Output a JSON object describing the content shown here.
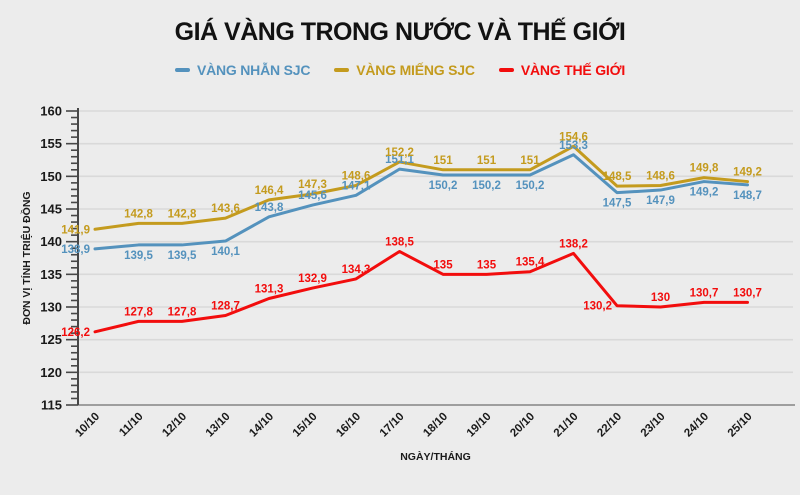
{
  "title": "GIÁ VÀNG TRONG NƯỚC VÀ THẾ GIỚI",
  "colors": {
    "background": "#ececec",
    "grid": "#d9d9d9",
    "y_axis": "#474747",
    "x_axis": "#9e9e9e",
    "tick_text": "#1a1a1a",
    "title_text": "#121212"
  },
  "chart_data": {
    "type": "line",
    "x": [
      "10/10",
      "11/10",
      "12/10",
      "13/10",
      "14/10",
      "15/10",
      "16/10",
      "17/10",
      "18/10",
      "19/10",
      "20/10",
      "21/10",
      "22/10",
      "23/10",
      "24/10",
      "25/10"
    ],
    "xlabel": "NGÀY/THÁNG",
    "ylabel": "ĐƠN VỊ TÍNH TRIỆU ĐỒNG",
    "ylim": [
      115,
      160
    ],
    "ytick_step": 5,
    "yticks": [
      115,
      120,
      125,
      130,
      135,
      140,
      145,
      150,
      155,
      160
    ],
    "minor_tick_step": 1,
    "grid": true,
    "legend_position": "top",
    "decimal_separator": ",",
    "series": [
      {
        "name": "VÀNG NHẪN SJC",
        "color": "#5492bd",
        "values": [
          138.9,
          139.5,
          139.5,
          140.1,
          143.8,
          145.6,
          147.1,
          151.1,
          150.2,
          150.2,
          150.2,
          153.3,
          147.5,
          147.9,
          149.2,
          148.7
        ],
        "labels": [
          "138,9",
          "139,5",
          "139,5",
          "140,1",
          "143,8",
          "145,6",
          "147,1",
          "151,1",
          "150,2",
          "150,2",
          "150,2",
          "153,3",
          "147,5",
          "147,9",
          "149,2",
          "148,7"
        ]
      },
      {
        "name": "VÀNG MIẾNG SJC",
        "color": "#c49b1e",
        "values": [
          141.9,
          142.8,
          142.8,
          143.6,
          146.4,
          147.3,
          148.6,
          152.2,
          151,
          151,
          151,
          154.6,
          148.5,
          148.6,
          149.8,
          149.2
        ],
        "labels": [
          "141,9",
          "142,8",
          "142,8",
          "143,6",
          "146,4",
          "147,3",
          "148,6",
          "152,2",
          "151",
          "151",
          "151",
          "154,6",
          "148,5",
          "148,6",
          "149,8",
          "149,2"
        ]
      },
      {
        "name": "VÀNG THẾ GIỚI",
        "color": "#f20d0d",
        "values": [
          126.2,
          127.8,
          127.8,
          128.7,
          131.3,
          132.9,
          134.3,
          138.5,
          135,
          135,
          135.4,
          138.2,
          130.2,
          130,
          130.7,
          130.7
        ],
        "labels": [
          "126,2",
          "127,8",
          "127,8",
          "128,7",
          "131,3",
          "132,9",
          "134,3",
          "138,5",
          "135",
          "135",
          "135,4",
          "138,2",
          "130,2",
          "130",
          "130,7",
          "130,7"
        ]
      }
    ]
  }
}
